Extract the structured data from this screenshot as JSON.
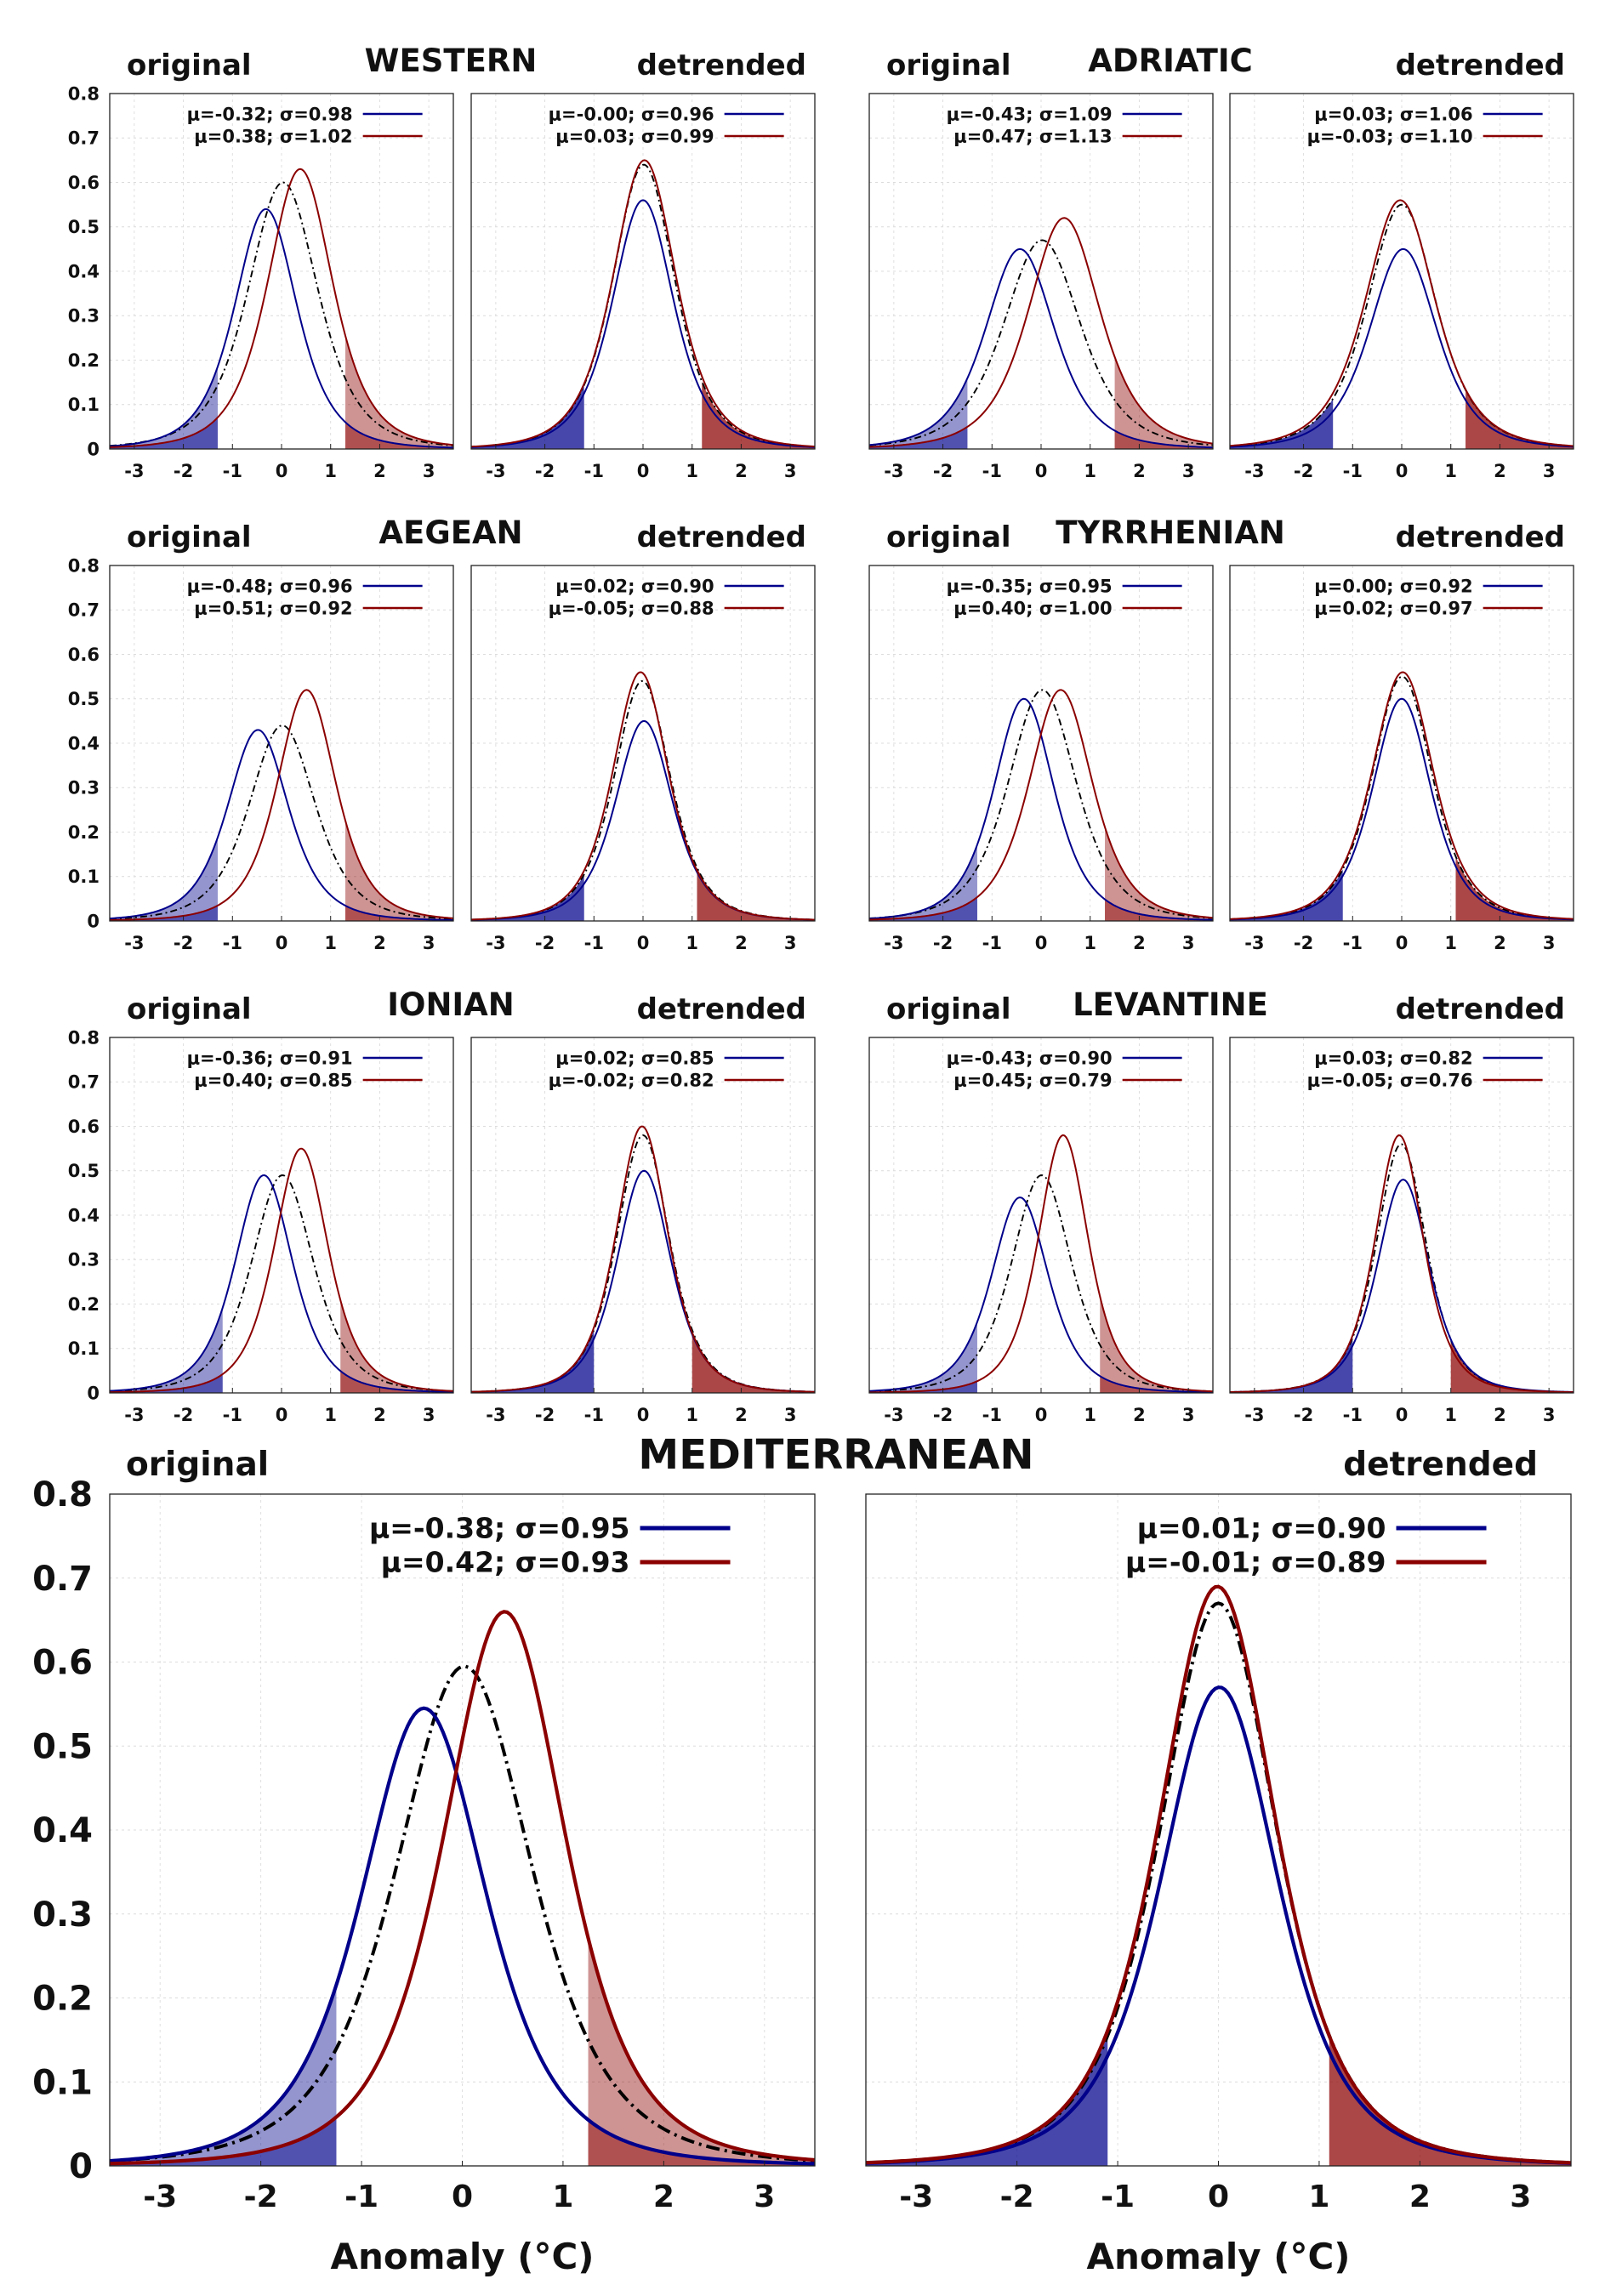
{
  "chart_data": {
    "type": "line",
    "ylim": [
      0,
      0.8
    ],
    "xlim": [
      -3.5,
      3.5
    ],
    "yticks": [
      "0",
      "0.1",
      "0.2",
      "0.3",
      "0.4",
      "0.5",
      "0.6",
      "0.7",
      "0.8"
    ],
    "xticks": [
      "-3",
      "-2",
      "-1",
      "0",
      "1",
      "2",
      "3"
    ],
    "colors": {
      "cold": "#00008b",
      "warm": "#8b0000",
      "all": "#000000"
    },
    "panel_labels": {
      "original": "original",
      "detrended": "detrended"
    },
    "xlabel": "Anomaly (°C)",
    "regions": [
      {
        "title": "WESTERN",
        "original": {
          "cold": {
            "mu": -0.32,
            "sigma": 0.98
          },
          "warm": {
            "mu": 0.38,
            "sigma": 1.02
          },
          "legend": [
            "μ=-0.32; σ=0.98",
            "μ=0.38; σ=1.02"
          ],
          "tails": [
            -1.3,
            1.3
          ],
          "peaks": [
            0.54,
            0.63,
            0.6
          ]
        },
        "detrended": {
          "cold": {
            "mu": 0.0,
            "sigma": 0.96
          },
          "warm": {
            "mu": 0.03,
            "sigma": 0.99
          },
          "legend": [
            "μ=-0.00; σ=0.96",
            "μ=0.03; σ=0.99"
          ],
          "tails": [
            -1.2,
            1.2
          ],
          "peaks": [
            0.56,
            0.65,
            0.64
          ]
        }
      },
      {
        "title": "ADRIATIC",
        "original": {
          "cold": {
            "mu": -0.43,
            "sigma": 1.09
          },
          "warm": {
            "mu": 0.47,
            "sigma": 1.13
          },
          "legend": [
            "μ=-0.43; σ=1.09",
            "μ=0.47; σ=1.13"
          ],
          "tails": [
            -1.5,
            1.5
          ],
          "peaks": [
            0.45,
            0.52,
            0.47
          ]
        },
        "detrended": {
          "cold": {
            "mu": 0.03,
            "sigma": 1.06
          },
          "warm": {
            "mu": -0.03,
            "sigma": 1.1
          },
          "legend": [
            "μ=0.03; σ=1.06",
            "μ=-0.03; σ=1.10"
          ],
          "tails": [
            -1.4,
            1.3
          ],
          "peaks": [
            0.45,
            0.56,
            0.55
          ]
        }
      },
      {
        "title": "AEGEAN",
        "original": {
          "cold": {
            "mu": -0.48,
            "sigma": 0.96
          },
          "warm": {
            "mu": 0.51,
            "sigma": 0.92
          },
          "legend": [
            "μ=-0.48; σ=0.96",
            "μ=0.51; σ=0.92"
          ],
          "tails": [
            -1.3,
            1.3
          ],
          "peaks": [
            0.43,
            0.52,
            0.44
          ]
        },
        "detrended": {
          "cold": {
            "mu": 0.02,
            "sigma": 0.9
          },
          "warm": {
            "mu": -0.05,
            "sigma": 0.88
          },
          "legend": [
            "μ=0.02; σ=0.90",
            "μ=-0.05; σ=0.88"
          ],
          "tails": [
            -1.2,
            1.1
          ],
          "peaks": [
            0.45,
            0.56,
            0.54
          ]
        }
      },
      {
        "title": "TYRRHENIAN",
        "original": {
          "cold": {
            "mu": -0.35,
            "sigma": 0.95
          },
          "warm": {
            "mu": 0.4,
            "sigma": 1.0
          },
          "legend": [
            "μ=-0.35; σ=0.95",
            "μ=0.40; σ=1.00"
          ],
          "tails": [
            -1.3,
            1.3
          ],
          "peaks": [
            0.5,
            0.52,
            0.52
          ]
        },
        "detrended": {
          "cold": {
            "mu": 0.0,
            "sigma": 0.92
          },
          "warm": {
            "mu": 0.02,
            "sigma": 0.97
          },
          "legend": [
            "μ=0.00; σ=0.92",
            "μ=0.02; σ=0.97"
          ],
          "tails": [
            -1.2,
            1.1
          ],
          "peaks": [
            0.5,
            0.56,
            0.55
          ]
        }
      },
      {
        "title": "IONIAN",
        "original": {
          "cold": {
            "mu": -0.36,
            "sigma": 0.91
          },
          "warm": {
            "mu": 0.4,
            "sigma": 0.85
          },
          "legend": [
            "μ=-0.36; σ=0.91",
            "μ=0.40; σ=0.85"
          ],
          "tails": [
            -1.2,
            1.2
          ],
          "peaks": [
            0.49,
            0.55,
            0.49
          ]
        },
        "detrended": {
          "cold": {
            "mu": 0.02,
            "sigma": 0.85
          },
          "warm": {
            "mu": -0.02,
            "sigma": 0.82
          },
          "legend": [
            "μ=0.02; σ=0.85",
            "μ=-0.02; σ=0.82"
          ],
          "tails": [
            -1.0,
            1.0
          ],
          "peaks": [
            0.5,
            0.6,
            0.58
          ]
        }
      },
      {
        "title": "LEVANTINE",
        "original": {
          "cold": {
            "mu": -0.43,
            "sigma": 0.9
          },
          "warm": {
            "mu": 0.45,
            "sigma": 0.79
          },
          "legend": [
            "μ=-0.43; σ=0.90",
            "μ=0.45; σ=0.79"
          ],
          "tails": [
            -1.3,
            1.2
          ],
          "peaks": [
            0.44,
            0.58,
            0.49
          ]
        },
        "detrended": {
          "cold": {
            "mu": 0.03,
            "sigma": 0.82
          },
          "warm": {
            "mu": -0.05,
            "sigma": 0.76
          },
          "legend": [
            "μ=0.03; σ=0.82",
            "μ=-0.05; σ=0.76"
          ],
          "tails": [
            -1.0,
            1.0
          ],
          "peaks": [
            0.48,
            0.58,
            0.56
          ]
        }
      },
      {
        "title": "MEDITERRANEAN",
        "original": {
          "cold": {
            "mu": -0.38,
            "sigma": 0.95
          },
          "warm": {
            "mu": 0.42,
            "sigma": 0.93
          },
          "legend": [
            "μ=-0.38; σ=0.95",
            "μ=0.42; σ=0.93"
          ],
          "tails": [
            -1.25,
            1.25
          ],
          "peaks": [
            0.545,
            0.66,
            0.595
          ]
        },
        "detrended": {
          "cold": {
            "mu": 0.01,
            "sigma": 0.9
          },
          "warm": {
            "mu": -0.01,
            "sigma": 0.89
          },
          "legend": [
            "μ=0.01; σ=0.90",
            "μ=-0.01; σ=0.89"
          ],
          "tails": [
            -1.1,
            1.1
          ],
          "peaks": [
            0.57,
            0.69,
            0.67
          ]
        }
      }
    ]
  }
}
